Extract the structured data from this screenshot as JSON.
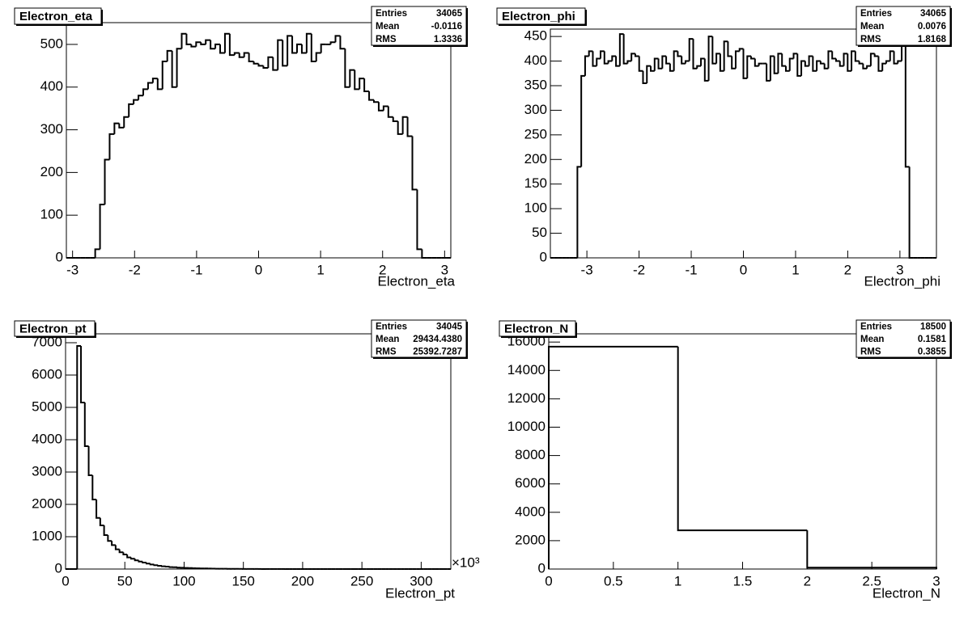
{
  "chart_data": [
    {
      "type": "histogram",
      "title": "Electron_eta",
      "xlabel": "Electron_eta",
      "color": "#000000",
      "stats": [
        {
          "label": "Entries",
          "value": "34065"
        },
        {
          "label": "Mean",
          "value": "-0.0116"
        },
        {
          "label": "RMS",
          "value": "1.3336"
        }
      ],
      "bins": [
        -3.1,
        -3.0225,
        -2.945,
        -2.8675,
        -2.79,
        -2.7125,
        -2.635,
        -2.5575,
        -2.48,
        -2.4025,
        -2.325,
        -2.2475,
        -2.17,
        -2.0925,
        -2.015,
        -1.9375,
        -1.86,
        -1.7825,
        -1.705,
        -1.6275,
        -1.55,
        -1.4725,
        -1.395,
        -1.3175,
        -1.24,
        -1.1625,
        -1.085,
        -1.0075,
        -0.93,
        -0.8525,
        -0.775,
        -0.6975,
        -0.62,
        -0.5425,
        -0.465,
        -0.3875,
        -0.31,
        -0.2325,
        -0.155,
        -0.0775,
        0,
        0.0775,
        0.155,
        0.2325,
        0.31,
        0.3875,
        0.465,
        0.5425,
        0.62,
        0.6975,
        0.775,
        0.8525,
        0.93,
        1.0075,
        1.085,
        1.1625,
        1.24,
        1.3175,
        1.395,
        1.4725,
        1.55,
        1.6275,
        1.705,
        1.7825,
        1.86,
        1.9375,
        2.015,
        2.0925,
        2.17,
        2.2475,
        2.325,
        2.4025,
        2.48,
        2.5575,
        2.635,
        2.7125,
        2.79,
        2.8675,
        2.945,
        3.0225,
        3.1
      ],
      "values": [
        0,
        0,
        0,
        0,
        0,
        0,
        20,
        125,
        230,
        290,
        315,
        305,
        330,
        360,
        370,
        380,
        395,
        410,
        420,
        395,
        460,
        485,
        400,
        490,
        525,
        500,
        495,
        505,
        500,
        510,
        490,
        500,
        480,
        525,
        475,
        480,
        470,
        480,
        460,
        455,
        450,
        445,
        470,
        440,
        510,
        450,
        520,
        480,
        500,
        480,
        525,
        460,
        480,
        500,
        500,
        505,
        520,
        490,
        400,
        440,
        395,
        420,
        390,
        370,
        365,
        345,
        355,
        330,
        320,
        290,
        330,
        285,
        160,
        20,
        0,
        0,
        0,
        0,
        0,
        0
      ],
      "xlim": [
        -3.1,
        3.1
      ],
      "ylim": [
        0,
        551
      ],
      "xticks": [
        -3,
        -2,
        -1,
        0,
        1,
        2,
        3
      ],
      "yticks": [
        0,
        100,
        200,
        300,
        400,
        500
      ]
    },
    {
      "type": "histogram",
      "title": "Electron_phi",
      "xlabel": "Electron_phi",
      "color": "#000000",
      "stats": [
        {
          "label": "Entries",
          "value": "34065"
        },
        {
          "label": "Mean",
          "value": "0.0076"
        },
        {
          "label": "RMS",
          "value": "1.8168"
        }
      ],
      "bins": [
        -3.7,
        -3.626,
        -3.552,
        -3.478,
        -3.404,
        -3.33,
        -3.256,
        -3.182,
        -3.108,
        -3.034,
        -2.96,
        -2.886,
        -2.812,
        -2.738,
        -2.664,
        -2.59,
        -2.516,
        -2.442,
        -2.368,
        -2.294,
        -2.22,
        -2.146,
        -2.072,
        -1.998,
        -1.924,
        -1.85,
        -1.776,
        -1.702,
        -1.628,
        -1.554,
        -1.48,
        -1.406,
        -1.332,
        -1.258,
        -1.184,
        -1.11,
        -1.036,
        -0.962,
        -0.888,
        -0.814,
        -0.74,
        -0.666,
        -0.592,
        -0.518,
        -0.444,
        -0.37,
        -0.296,
        -0.222,
        -0.148,
        -0.074,
        0,
        0.074,
        0.148,
        0.222,
        0.296,
        0.37,
        0.444,
        0.518,
        0.592,
        0.666,
        0.74,
        0.814,
        0.888,
        0.962,
        1.036,
        1.11,
        1.184,
        1.258,
        1.332,
        1.406,
        1.48,
        1.554,
        1.628,
        1.702,
        1.776,
        1.85,
        1.924,
        1.998,
        2.072,
        2.146,
        2.22,
        2.294,
        2.368,
        2.442,
        2.516,
        2.59,
        2.664,
        2.738,
        2.812,
        2.886,
        2.96,
        3.034,
        3.108,
        3.182,
        3.256,
        3.33,
        3.404,
        3.478,
        3.552,
        3.626,
        3.7
      ],
      "values": [
        0,
        0,
        0,
        0,
        0,
        0,
        0,
        185,
        370,
        410,
        420,
        390,
        405,
        420,
        395,
        400,
        410,
        390,
        455,
        395,
        400,
        415,
        410,
        380,
        355,
        390,
        380,
        405,
        385,
        410,
        395,
        380,
        420,
        410,
        395,
        400,
        445,
        385,
        390,
        405,
        360,
        450,
        395,
        415,
        380,
        440,
        410,
        385,
        420,
        425,
        365,
        410,
        405,
        390,
        395,
        395,
        360,
        410,
        375,
        415,
        390,
        380,
        405,
        415,
        370,
        400,
        390,
        410,
        380,
        400,
        395,
        385,
        420,
        405,
        400,
        390,
        415,
        380,
        420,
        400,
        395,
        385,
        390,
        415,
        410,
        380,
        395,
        400,
        420,
        395,
        400,
        440,
        185,
        0,
        0,
        0,
        0,
        0,
        0,
        0
      ],
      "xlim": [
        -3.7,
        3.7
      ],
      "ylim": [
        0,
        465
      ],
      "xticks": [
        -3,
        -2,
        -1,
        0,
        1,
        2,
        3
      ],
      "yticks": [
        0,
        50,
        100,
        150,
        200,
        250,
        300,
        350,
        400,
        450
      ]
    },
    {
      "type": "histogram",
      "title": "Electron_pt",
      "xlabel": "Electron_pt",
      "x_multiplier": "×10³",
      "color": "#000000",
      "stats": [
        {
          "label": "Entries",
          "value": "34045"
        },
        {
          "label": "Mean",
          "value": "29434.4380"
        },
        {
          "label": "RMS",
          "value": "25392.7287"
        }
      ],
      "bins": [
        0,
        3.25,
        6.5,
        9.75,
        13,
        16.25,
        19.5,
        22.75,
        26,
        29.25,
        32.5,
        35.75,
        39,
        42.25,
        45.5,
        48.75,
        52,
        55.25,
        58.5,
        61.75,
        65,
        68.25,
        71.5,
        74.75,
        78,
        81.25,
        84.5,
        87.75,
        91,
        94.25,
        97.5,
        100.75,
        104,
        107.25,
        110.5,
        113.75,
        117,
        120.25,
        123.5,
        126.75,
        130,
        133.25,
        136.5,
        139.75,
        143,
        146.25,
        149.5,
        152.75,
        156,
        159.25,
        162.5,
        165.75,
        169,
        172.25,
        175.5,
        178.75,
        182,
        185.25,
        188.5,
        191.75,
        195,
        198.25,
        201.5,
        204.75,
        208,
        211.25,
        214.5,
        217.75,
        221,
        224.25,
        227.5,
        230.75,
        234,
        237.25,
        240.5,
        243.75,
        247,
        250.25,
        253.5,
        256.75,
        260,
        263.25,
        266.5,
        269.75,
        273,
        276.25,
        279.5,
        282.75,
        286,
        289.25,
        292.5,
        295.75,
        299,
        302.25,
        305.5,
        308.75,
        312,
        315.25,
        318.5,
        321.75,
        325
      ],
      "values": [
        0,
        0,
        0,
        6900,
        5150,
        3800,
        2900,
        2150,
        1580,
        1350,
        1050,
        870,
        740,
        610,
        520,
        450,
        360,
        320,
        270,
        230,
        200,
        170,
        140,
        120,
        100,
        85,
        75,
        60,
        55,
        45,
        40,
        35,
        30,
        25,
        22,
        20,
        18,
        15,
        12,
        10,
        9,
        8,
        7,
        6,
        5,
        5,
        4,
        3,
        3,
        2,
        2,
        1,
        1,
        1,
        1,
        1,
        1,
        0,
        0,
        0,
        0,
        0,
        0,
        0,
        0,
        0,
        0,
        0,
        0,
        0,
        0,
        0,
        0,
        0,
        0,
        0,
        0,
        0,
        0,
        0,
        0,
        0,
        0,
        0,
        0,
        0,
        0,
        0,
        0,
        0,
        0,
        0,
        0,
        0,
        0,
        0,
        0,
        0,
        0,
        0
      ],
      "xlim": [
        0,
        325
      ],
      "ylim": [
        0,
        7275
      ],
      "xticks": [
        0,
        50,
        100,
        150,
        200,
        250,
        300
      ],
      "yticks": [
        0,
        1000,
        2000,
        3000,
        4000,
        5000,
        6000,
        7000
      ]
    },
    {
      "type": "histogram",
      "title": "Electron_N",
      "xlabel": "Electron_N",
      "color": "#000000",
      "stats": [
        {
          "label": "Entries",
          "value": "18500"
        },
        {
          "label": "Mean",
          "value": "0.1581"
        },
        {
          "label": "RMS",
          "value": "0.3855"
        }
      ],
      "bins": [
        0,
        1,
        2,
        3
      ],
      "values": [
        15675,
        2725,
        100
      ],
      "xlim": [
        0,
        3
      ],
      "ylim": [
        0,
        16580
      ],
      "xticks": [
        0,
        0.5,
        1,
        1.5,
        2,
        2.5,
        3
      ],
      "yticks": [
        0,
        2000,
        4000,
        6000,
        8000,
        10000,
        12000,
        14000,
        16000
      ]
    }
  ]
}
